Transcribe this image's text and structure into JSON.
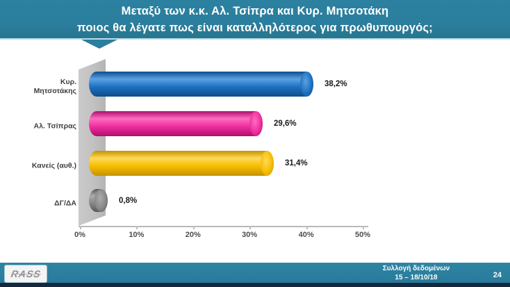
{
  "header": {
    "title_line1": "Μεταξύ των κ.κ. Αλ. Τσίπρα και Κυρ. Μητσοτάκη",
    "title_line2": "ποιος θα λέγατε πως είναι καταλληλότερος για πρωθυπουργός;",
    "banner_color": "#2b7e9d"
  },
  "chart_data": {
    "type": "bar",
    "orientation": "horizontal",
    "style": "3d-cylinder",
    "title": "Μεταξύ των κ.κ. Αλ. Τσίπρα και Κυρ. Μητσοτάκη ποιος θα λέγατε πως είναι καταλληλότερος για πρωθυπουργός;",
    "categories": [
      "Κυρ. Μητσοτάκης",
      "Αλ. Τσίπρας",
      "Κανείς (αυθ.)",
      "ΔΓ/ΔΑ"
    ],
    "values": [
      38.2,
      29.6,
      31.4,
      0.8
    ],
    "series": [
      {
        "label_lines": [
          "Κυρ.",
          "Μητσοτάκης"
        ],
        "value": 38.2,
        "value_label": "38,2%",
        "color_dark": "#0d4d8c",
        "color_main": "#1d6fbe",
        "color_light": "#5aa2e4"
      },
      {
        "label_lines": [
          "Αλ. Τσίπρας"
        ],
        "value": 29.6,
        "value_label": "29,6%",
        "color_dark": "#ad0e6d",
        "color_main": "#ee2d9d",
        "color_light": "#ff6cc0"
      },
      {
        "label_lines": [
          "Κανείς (αυθ.)"
        ],
        "value": 31.4,
        "value_label": "31,4%",
        "color_dark": "#c39300",
        "color_main": "#f5bd00",
        "color_light": "#ffd958"
      },
      {
        "label_lines": [
          "ΔΓ/ΔΑ"
        ],
        "value": 0.8,
        "value_label": "0,8%",
        "color_dark": "#585858",
        "color_main": "#878787",
        "color_light": "#ababab"
      }
    ],
    "x_ticks": [
      "0%",
      "10%",
      "20%",
      "30%",
      "40%",
      "50%"
    ],
    "xlabel": "",
    "ylabel": "",
    "xlim": [
      0,
      50
    ],
    "grid": false,
    "legend": null,
    "wall_color": "#c2c1c1"
  },
  "footer": {
    "logo_text": "RASS",
    "collection_label": "Συλλογή δεδομένων",
    "date_range": "15 – 18/10/18",
    "page_number": "24",
    "bar_color": "#2b7e9d",
    "strip_color": "#15283e"
  }
}
